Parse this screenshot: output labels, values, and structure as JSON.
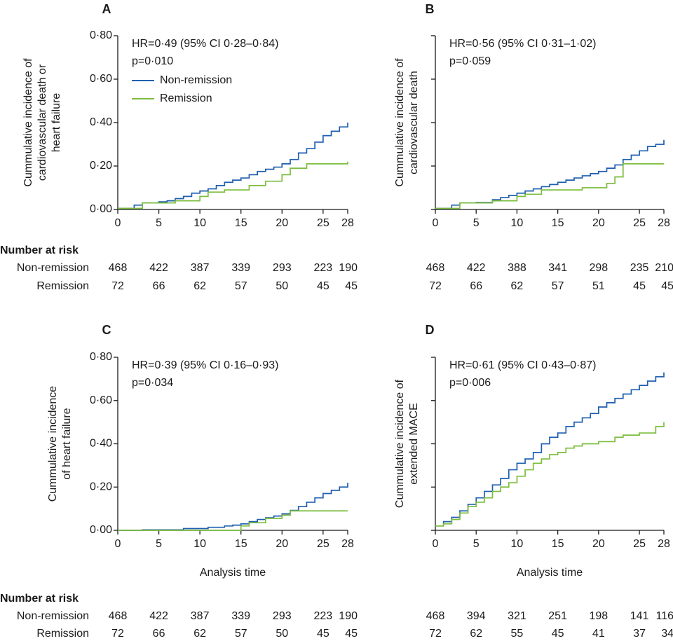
{
  "figure": {
    "risk_header": "Number at risk",
    "xlabel_shared": "Analysis time"
  },
  "colors": {
    "non_remission": "#1f5fb0",
    "remission": "#7cbd3d",
    "axis": "#1a1a1a"
  },
  "chart_data": [
    {
      "panel": "A",
      "type": "line",
      "step": true,
      "ylabel_lines": [
        "Cummulative incidence of",
        "cardiovascular death or",
        "heart failure"
      ],
      "xlabel": "",
      "xlim": [
        0,
        28
      ],
      "ylim": [
        0,
        0.8
      ],
      "xticks": [
        0,
        5,
        10,
        15,
        20,
        25,
        28
      ],
      "yticks": [
        0,
        0.2,
        0.4,
        0.6,
        0.8
      ],
      "ytick_labels": [
        "0·00",
        "0·20",
        "0·40",
        "0·60",
        "0·80"
      ],
      "annotation": [
        "HR=0·49 (95% CI 0·28–0·84)",
        "p=0·010"
      ],
      "legend": [
        "Non-remission",
        "Remission"
      ],
      "series": [
        {
          "name": "Non-remission",
          "x": [
            0,
            2,
            3,
            5,
            6,
            7,
            8,
            9,
            10,
            11,
            12,
            13,
            14,
            15,
            16,
            17,
            18,
            19,
            20,
            21,
            22,
            23,
            24,
            25,
            26,
            27,
            28
          ],
          "y": [
            0.005,
            0.02,
            0.03,
            0.035,
            0.04,
            0.05,
            0.06,
            0.075,
            0.085,
            0.095,
            0.11,
            0.125,
            0.135,
            0.145,
            0.16,
            0.175,
            0.185,
            0.195,
            0.21,
            0.23,
            0.26,
            0.28,
            0.31,
            0.34,
            0.36,
            0.38,
            0.4
          ]
        },
        {
          "name": "Remission",
          "x": [
            0,
            3,
            7,
            10,
            11,
            13,
            16,
            18,
            20,
            21,
            23,
            28
          ],
          "y": [
            0.005,
            0.03,
            0.04,
            0.06,
            0.08,
            0.09,
            0.11,
            0.13,
            0.16,
            0.19,
            0.21,
            0.22
          ]
        }
      ],
      "risk_groups": [
        "Non-remission",
        "Remission"
      ],
      "risk_times": [
        0,
        5,
        10,
        15,
        20,
        25,
        28
      ],
      "risk_rows": [
        [
          "468",
          "422",
          "387",
          "339",
          "293",
          "223",
          "190"
        ],
        [
          "72",
          "66",
          "62",
          "57",
          "50",
          "45",
          "45"
        ]
      ]
    },
    {
      "panel": "B",
      "type": "line",
      "step": true,
      "ylabel_lines": [
        "Cummulative incidence of",
        "cardiovascular death"
      ],
      "xlabel": "",
      "xlim": [
        0,
        28
      ],
      "ylim": [
        0,
        0.8
      ],
      "xticks": [
        0,
        5,
        10,
        15,
        20,
        25,
        28
      ],
      "yticks": [
        0,
        0.2,
        0.4,
        0.6,
        0.8
      ],
      "ytick_labels": [],
      "annotation": [
        "HR=0·56 (95% CI 0·31–1·02)",
        "p=0·059"
      ],
      "legend": [],
      "series": [
        {
          "name": "Non-remission",
          "x": [
            0,
            2,
            3,
            5,
            7,
            8,
            9,
            10,
            11,
            12,
            13,
            14,
            15,
            16,
            17,
            18,
            19,
            20,
            21,
            22,
            23,
            24,
            25,
            26,
            27,
            28
          ],
          "y": [
            0.005,
            0.02,
            0.03,
            0.032,
            0.045,
            0.055,
            0.065,
            0.075,
            0.085,
            0.095,
            0.105,
            0.115,
            0.125,
            0.135,
            0.145,
            0.155,
            0.165,
            0.175,
            0.19,
            0.205,
            0.23,
            0.25,
            0.27,
            0.29,
            0.3,
            0.32
          ]
        },
        {
          "name": "Remission",
          "x": [
            0,
            3,
            7,
            10,
            11,
            13,
            18,
            21,
            22,
            23,
            28
          ],
          "y": [
            0.005,
            0.03,
            0.04,
            0.06,
            0.07,
            0.09,
            0.1,
            0.12,
            0.15,
            0.21,
            0.21
          ]
        }
      ],
      "risk_groups": [],
      "risk_times": [
        0,
        5,
        10,
        15,
        20,
        25,
        28
      ],
      "risk_rows": [
        [
          "468",
          "422",
          "388",
          "341",
          "298",
          "235",
          "210"
        ],
        [
          "72",
          "66",
          "62",
          "57",
          "51",
          "45",
          "45"
        ]
      ]
    },
    {
      "panel": "C",
      "type": "line",
      "step": true,
      "ylabel_lines": [
        "Cummulative incidence",
        "of heart failure"
      ],
      "xlabel": "Analysis time",
      "xlim": [
        0,
        28
      ],
      "ylim": [
        0,
        0.8
      ],
      "xticks": [
        0,
        5,
        10,
        15,
        20,
        25,
        28
      ],
      "yticks": [
        0,
        0.2,
        0.4,
        0.6,
        0.8
      ],
      "ytick_labels": [
        "0·00",
        "0·20",
        "0·40",
        "0·60",
        "0·80"
      ],
      "annotation": [
        "HR=0·39 (95% CI 0·16–0·93)",
        "p=0·034"
      ],
      "legend": [],
      "series": [
        {
          "name": "Non-remission",
          "x": [
            0,
            3,
            8,
            11,
            13,
            14,
            15,
            16,
            17,
            18,
            19,
            20,
            21,
            22,
            23,
            24,
            25,
            26,
            27,
            28
          ],
          "y": [
            0,
            0.002,
            0.008,
            0.014,
            0.02,
            0.024,
            0.03,
            0.04,
            0.05,
            0.058,
            0.066,
            0.076,
            0.092,
            0.11,
            0.13,
            0.15,
            0.17,
            0.185,
            0.2,
            0.22
          ]
        },
        {
          "name": "Remission",
          "x": [
            0,
            15,
            16,
            18,
            20,
            21,
            28
          ],
          "y": [
            0,
            0.02,
            0.035,
            0.055,
            0.07,
            0.09,
            0.09
          ]
        }
      ],
      "risk_groups": [
        "Non-remission",
        "Remission"
      ],
      "risk_times": [
        0,
        5,
        10,
        15,
        20,
        25,
        28
      ],
      "risk_rows": [
        [
          "468",
          "422",
          "387",
          "339",
          "293",
          "223",
          "190"
        ],
        [
          "72",
          "66",
          "62",
          "57",
          "50",
          "45",
          "45"
        ]
      ]
    },
    {
      "panel": "D",
      "type": "line",
      "step": true,
      "ylabel_lines": [
        "Cummulative incidence of",
        "extended MACE"
      ],
      "xlabel": "Analysis time",
      "xlim": [
        0,
        28
      ],
      "ylim": [
        0,
        0.8
      ],
      "xticks": [
        0,
        5,
        10,
        15,
        20,
        25,
        28
      ],
      "yticks": [
        0,
        0.2,
        0.4,
        0.6,
        0.8
      ],
      "ytick_labels": [],
      "annotation": [
        "HR=0·61 (95% CI 0·43–0·87)",
        "p=0·006"
      ],
      "legend": [],
      "series": [
        {
          "name": "Non-remission",
          "x": [
            0,
            1,
            2,
            3,
            4,
            5,
            6,
            7,
            8,
            9,
            10,
            11,
            12,
            13,
            14,
            15,
            16,
            17,
            18,
            19,
            20,
            21,
            22,
            23,
            24,
            25,
            26,
            27,
            28
          ],
          "y": [
            0.02,
            0.04,
            0.06,
            0.09,
            0.12,
            0.15,
            0.18,
            0.21,
            0.24,
            0.28,
            0.31,
            0.33,
            0.36,
            0.4,
            0.43,
            0.45,
            0.48,
            0.5,
            0.52,
            0.54,
            0.57,
            0.59,
            0.61,
            0.63,
            0.65,
            0.67,
            0.69,
            0.71,
            0.73
          ]
        },
        {
          "name": "Remission",
          "x": [
            0,
            1,
            2,
            3,
            4,
            5,
            6,
            7,
            8,
            9,
            10,
            11,
            12,
            13,
            14,
            15,
            16,
            17,
            18,
            20,
            22,
            23,
            25,
            27,
            28
          ],
          "y": [
            0.02,
            0.03,
            0.05,
            0.08,
            0.11,
            0.13,
            0.15,
            0.18,
            0.2,
            0.22,
            0.25,
            0.28,
            0.31,
            0.33,
            0.35,
            0.36,
            0.38,
            0.39,
            0.4,
            0.41,
            0.43,
            0.44,
            0.45,
            0.48,
            0.5
          ]
        }
      ],
      "risk_groups": [],
      "risk_times": [
        0,
        5,
        10,
        15,
        20,
        25,
        28
      ],
      "risk_rows": [
        [
          "468",
          "394",
          "321",
          "251",
          "198",
          "141",
          "116"
        ],
        [
          "72",
          "62",
          "55",
          "45",
          "41",
          "37",
          "34"
        ]
      ]
    }
  ]
}
